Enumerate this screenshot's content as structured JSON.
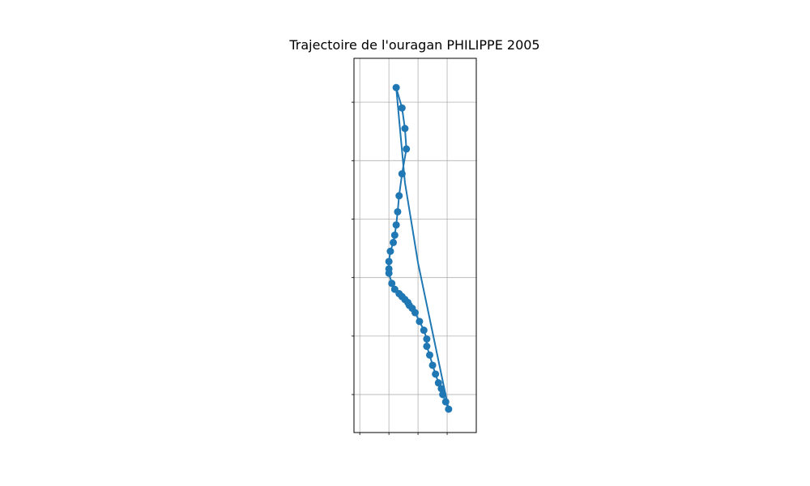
{
  "chart_data": {
    "type": "line",
    "title": "Trajectoire de l'ouragan PHILIPPE 2005",
    "xlabel": "",
    "ylabel": "",
    "grid": true,
    "x_gridlines": [
      -61.9,
      -59.9,
      -57.9,
      -55.9
    ],
    "y_gridlines": [
      11.0,
      15.0,
      19.0,
      23.0,
      27.0,
      31.0
    ],
    "xlim": [
      -62.3,
      -53.9
    ],
    "ylim": [
      8.4,
      34.0
    ],
    "series": [
      {
        "color": "#1f77b4",
        "track": [
          [
            -59.4,
            32.0
          ],
          [
            -59.0,
            30.6
          ],
          [
            -58.8,
            29.2
          ],
          [
            -58.7,
            27.8
          ],
          [
            -59.0,
            26.1
          ],
          [
            -59.2,
            24.6
          ],
          [
            -59.3,
            23.5
          ],
          [
            -59.4,
            22.6
          ],
          [
            -59.5,
            21.9
          ],
          [
            -59.6,
            21.4
          ],
          [
            -59.8,
            20.8
          ],
          [
            -59.9,
            20.1
          ],
          [
            -59.9,
            19.6
          ],
          [
            -59.9,
            19.3
          ],
          [
            -59.7,
            18.6
          ],
          [
            -59.5,
            18.2
          ],
          [
            -59.2,
            17.9
          ],
          [
            -59.0,
            17.7
          ],
          [
            -58.8,
            17.5
          ],
          [
            -58.6,
            17.3
          ],
          [
            -58.5,
            17.1
          ],
          [
            -58.3,
            16.9
          ],
          [
            -58.1,
            16.6
          ],
          [
            -57.8,
            16.0
          ],
          [
            -57.5,
            15.4
          ],
          [
            -57.3,
            14.8
          ],
          [
            -57.3,
            14.3
          ],
          [
            -57.1,
            13.7
          ],
          [
            -56.9,
            13.0
          ],
          [
            -56.7,
            12.4
          ],
          [
            -56.5,
            11.8
          ],
          [
            -56.3,
            11.4
          ],
          [
            -56.2,
            11.0
          ],
          [
            -56.0,
            10.5
          ],
          [
            -55.8,
            10.0
          ],
          [
            -57.9,
            20.0
          ],
          [
            -58.8,
            25.5
          ],
          [
            -59.4,
            32.0
          ]
        ],
        "points": [
          [
            -59.4,
            32.0
          ],
          [
            -59.0,
            30.6
          ],
          [
            -58.8,
            29.2
          ],
          [
            -58.7,
            27.8
          ],
          [
            -59.0,
            26.1
          ],
          [
            -59.2,
            24.6
          ],
          [
            -59.3,
            23.5
          ],
          [
            -59.4,
            22.6
          ],
          [
            -59.5,
            21.9
          ],
          [
            -59.6,
            21.4
          ],
          [
            -59.8,
            20.8
          ],
          [
            -59.9,
            20.1
          ],
          [
            -59.9,
            19.6
          ],
          [
            -59.9,
            19.3
          ],
          [
            -59.7,
            18.6
          ],
          [
            -59.5,
            18.2
          ],
          [
            -59.2,
            17.9
          ],
          [
            -59.0,
            17.7
          ],
          [
            -58.8,
            17.5
          ],
          [
            -58.6,
            17.3
          ],
          [
            -58.5,
            17.1
          ],
          [
            -58.3,
            16.9
          ],
          [
            -58.1,
            16.6
          ],
          [
            -57.8,
            16.0
          ],
          [
            -57.5,
            15.4
          ],
          [
            -57.3,
            14.8
          ],
          [
            -57.3,
            14.3
          ],
          [
            -57.1,
            13.7
          ],
          [
            -56.9,
            13.0
          ],
          [
            -56.7,
            12.4
          ],
          [
            -56.5,
            11.8
          ],
          [
            -56.3,
            11.4
          ],
          [
            -56.2,
            11.0
          ],
          [
            -56.0,
            10.5
          ],
          [
            -55.8,
            10.0
          ]
        ]
      }
    ]
  }
}
